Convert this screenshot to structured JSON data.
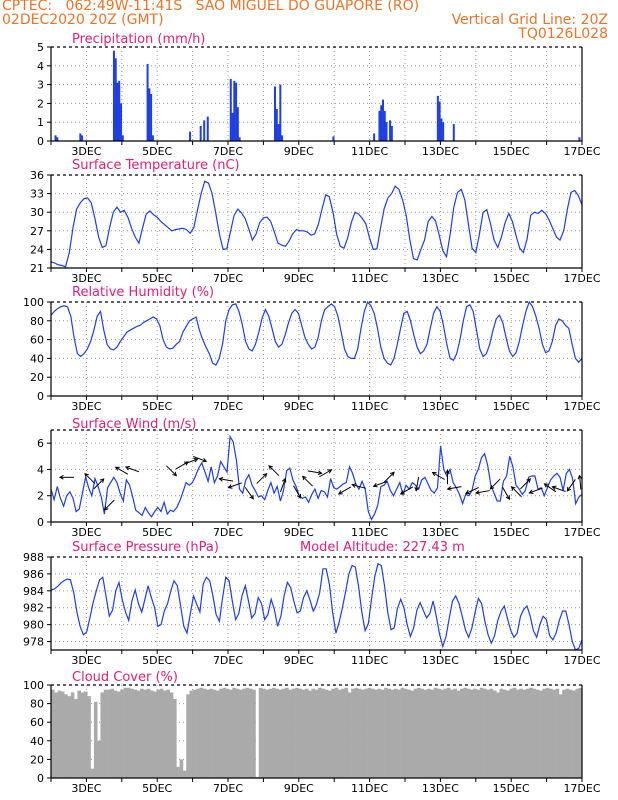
{
  "header": {
    "line1_left": "CPTEC:   062:49W-11:41S   SAO MIGUEL DO GUAPORE (RO)",
    "line2_left": "02DEC2020 20Z (GMT)",
    "line2_right": "Vertical Grid Line: 20Z",
    "line3_right": "TQ0126L028"
  },
  "colors": {
    "header": "#e8752a",
    "title": "#e0207a",
    "series": "#1f3fe0",
    "cloud": "#aaaaaa",
    "arrow": "#000000"
  },
  "chart_data": [
    {
      "type": "bar",
      "title": "Precipitation (mm/h)",
      "ylim": [
        0,
        5
      ],
      "yticks": [
        0,
        1,
        2,
        3,
        4,
        5
      ],
      "xlabels": [
        "3DEC",
        "5DEC",
        "7DEC",
        "9DEC",
        "11DEC",
        "13DEC",
        "15DEC",
        "17DEC"
      ],
      "bars": [
        [
          0.1,
          0.3
        ],
        [
          0.15,
          0.2
        ],
        [
          0.8,
          0.4
        ],
        [
          0.85,
          0.3
        ],
        [
          1.75,
          4.8
        ],
        [
          1.8,
          4.4
        ],
        [
          1.85,
          3.1
        ],
        [
          1.9,
          3.2
        ],
        [
          1.95,
          2.0
        ],
        [
          2.0,
          0.3
        ],
        [
          2.7,
          4.1
        ],
        [
          2.75,
          2.8
        ],
        [
          2.8,
          2.5
        ],
        [
          2.85,
          0.3
        ],
        [
          3.9,
          0.5
        ],
        [
          4.2,
          0.8
        ],
        [
          4.3,
          1.1
        ],
        [
          4.4,
          1.3
        ],
        [
          5.05,
          3.3
        ],
        [
          5.1,
          1.5
        ],
        [
          5.15,
          3.2
        ],
        [
          5.2,
          3.1
        ],
        [
          5.25,
          1.8
        ],
        [
          5.3,
          0.2
        ],
        [
          6.3,
          2.9
        ],
        [
          6.35,
          1.7
        ],
        [
          6.4,
          0.9
        ],
        [
          6.45,
          3.0
        ],
        [
          6.5,
          0.3
        ],
        [
          7.95,
          0.25
        ],
        [
          9.1,
          0.4
        ],
        [
          9.25,
          1.6
        ],
        [
          9.3,
          1.9
        ],
        [
          9.35,
          2.2
        ],
        [
          9.4,
          1.6
        ],
        [
          9.45,
          1.0
        ],
        [
          9.55,
          1.1
        ],
        [
          9.6,
          0.8
        ],
        [
          10.9,
          2.4
        ],
        [
          10.95,
          2.1
        ],
        [
          11.0,
          1.2
        ],
        [
          11.05,
          1.0
        ],
        [
          11.35,
          0.9
        ],
        [
          14.9,
          0.2
        ]
      ]
    },
    {
      "type": "line",
      "title": "Surface Temperature (nC)",
      "ylim": [
        21,
        36
      ],
      "yticks": [
        21,
        24,
        27,
        30,
        33,
        36
      ],
      "xlabels": [
        "3DEC",
        "5DEC",
        "7DEC",
        "9DEC",
        "11DEC",
        "13DEC",
        "15DEC",
        "17DEC"
      ],
      "y": [
        22,
        21.8,
        21.5,
        21.4,
        21.2,
        23.5,
        27.5,
        30.5,
        31.5,
        32.2,
        32.3,
        31.5,
        29,
        26,
        24.3,
        24.6,
        27.5,
        30,
        30.8,
        30,
        30.3,
        29.2,
        27.4,
        26,
        25,
        27.5,
        29.7,
        30.2,
        29.6,
        29.2,
        28.5,
        28,
        27.5,
        27,
        27.2,
        27.3,
        27.4,
        27.2,
        26.6,
        27.5,
        30.3,
        33,
        35,
        34.7,
        33,
        29.8,
        26.4,
        24,
        24.1,
        26.8,
        29.5,
        30.5,
        29.9,
        29,
        27.3,
        25.5,
        26.5,
        28.3,
        29.1,
        29.2,
        28.5,
        26.8,
        25,
        24.7,
        24.5,
        25.3,
        26.5,
        27.2,
        27,
        27,
        26.8,
        26.3,
        26.5,
        28,
        30.5,
        32.8,
        32.5,
        30,
        26.5,
        24.5,
        24.2,
        25.8,
        28.3,
        30,
        29.7,
        29,
        28.1,
        25.8,
        24,
        24.1,
        27.5,
        30.6,
        32.3,
        33,
        34.2,
        33.7,
        32,
        29.5,
        25.5,
        22.5,
        22.3,
        24,
        25.5,
        28.5,
        29.3,
        28.6,
        26.3,
        23.8,
        22.8,
        26.5,
        30.8,
        33.2,
        33.7,
        32,
        28,
        24.2,
        23.5,
        26.5,
        30,
        30.4,
        28.2,
        25.5,
        24.3,
        26,
        28.3,
        29.8,
        28.5,
        26.2,
        24.2,
        23.5,
        25.7,
        29.5,
        30,
        29.8,
        30.3,
        29.8,
        28.8,
        27.4,
        26,
        25.5,
        27,
        30.5,
        33.2,
        33.5,
        32.7,
        31.2
      ]
    },
    {
      "type": "line",
      "title": "Relative Humidity (%)",
      "ylim": [
        0,
        100
      ],
      "yticks": [
        0,
        20,
        40,
        60,
        80,
        100
      ],
      "xlabels": [
        "3DEC",
        "5DEC",
        "7DEC",
        "9DEC",
        "11DEC",
        "13DEC",
        "15DEC",
        "17DEC"
      ],
      "y": [
        86,
        90,
        93,
        95,
        96,
        95,
        85,
        62,
        45,
        42,
        45,
        50,
        58,
        70,
        85,
        90,
        70,
        55,
        50,
        49,
        52,
        58,
        63,
        68,
        70,
        72,
        74,
        75,
        78,
        80,
        82,
        84,
        82,
        75,
        60,
        52,
        50,
        51,
        55,
        58,
        68,
        74,
        80,
        82,
        84,
        70,
        60,
        52,
        45,
        35,
        33,
        40,
        55,
        80,
        92,
        97,
        98,
        90,
        76,
        58,
        50,
        48,
        55,
        68,
        83,
        92,
        85,
        72,
        58,
        52,
        55,
        65,
        78,
        88,
        92,
        88,
        75,
        62,
        55,
        50,
        52,
        62,
        80,
        92,
        95,
        98,
        95,
        85,
        68,
        50,
        42,
        40,
        40,
        50,
        72,
        90,
        100,
        96,
        88,
        72,
        52,
        40,
        35,
        33,
        40,
        55,
        72,
        88,
        90,
        80,
        65,
        52,
        45,
        48,
        55,
        72,
        88,
        95,
        90,
        75,
        55,
        40,
        38,
        45,
        60,
        80,
        95,
        97,
        90,
        70,
        50,
        42,
        45,
        55,
        70,
        82,
        86,
        78,
        62,
        48,
        42,
        46,
        58,
        75,
        90,
        100,
        95,
        85,
        72,
        55,
        46,
        48,
        58,
        75,
        82,
        80,
        75,
        72,
        55,
        40,
        36,
        40
      ]
    },
    {
      "type": "line",
      "title": "Surface Wind (m/s)",
      "ylim": [
        0,
        7
      ],
      "yticks": [
        0,
        2,
        4,
        6
      ],
      "xlabels": [
        "3DEC",
        "5DEC",
        "7DEC",
        "9DEC",
        "11DEC",
        "13DEC",
        "15DEC",
        "17DEC"
      ],
      "y": [
        2.5,
        1.7,
        2.7,
        1.8,
        1.2,
        2.0,
        2.3,
        1.8,
        0.8,
        1.0,
        2.2,
        3.4,
        2.6,
        2.0,
        3.3,
        2.7,
        1.9,
        0.6,
        2.6,
        3.0,
        3.4,
        3.0,
        2.2,
        1.6,
        3.2,
        2.8,
        1.9,
        0.9,
        0.7,
        0.5,
        1.1,
        0.7,
        0.4,
        0.8,
        1.1,
        0.8,
        1.5,
        0.6,
        0.9,
        0.8,
        1.1,
        1.6,
        2.3,
        3.0,
        2.8,
        3.0,
        3.5,
        4.1,
        4.5,
        3.8,
        3.1,
        4.2,
        3.0,
        3.5,
        4.6,
        4.2,
        3.8,
        6.5,
        6.1,
        4.7,
        2.5,
        2.2,
        3.2,
        3.6,
        2.8,
        2.4,
        1.9,
        2.0,
        1.7,
        2.4,
        3.0,
        2.2,
        2.7,
        1.6,
        2.4,
        3.9,
        4.1,
        3.2,
        2.7,
        2.0,
        1.8,
        1.9,
        1.5,
        2.1,
        2.5,
        1.8,
        2.4,
        2.3,
        1.9,
        3.3,
        2.6,
        2.5,
        2.7,
        2.9,
        3.0,
        4.2,
        3.7,
        2.9,
        2.5,
        3.1,
        2.5,
        0.8,
        0.2,
        0.6,
        1.3,
        2.7,
        2.8,
        3.1,
        2.4,
        2.0,
        2.5,
        3.0,
        2.1,
        2.8,
        2.5,
        3.0,
        2.8,
        2.5,
        3.2,
        3.4,
        2.9,
        2.4,
        2.2,
        2.6,
        5.8,
        4.0,
        3.5,
        4.0,
        3.0,
        2.6,
        2.1,
        1.4,
        2.1,
        2.0,
        2.4,
        3.5,
        4.0,
        4.9,
        5.2,
        4.3,
        2.8,
        2.2,
        1.6,
        1.6,
        3.1,
        3.5,
        5.0,
        4.2,
        2.8,
        2.5,
        2.1,
        2.4,
        3.4,
        3.5,
        3.5,
        2.5,
        2.6,
        2.0,
        2.6,
        3.2,
        3.5,
        3.7,
        3.4,
        2.4,
        3.7,
        4.0,
        3.3,
        1.4,
        1.9,
        2.1
      ],
      "arrows": [
        [
          0.45,
          3.4,
          180
        ],
        [
          1.1,
          3.3,
          135
        ],
        [
          1.35,
          2.9,
          45
        ],
        [
          1.65,
          1.3,
          225
        ],
        [
          2.0,
          3.9,
          150
        ],
        [
          2.3,
          4.0,
          160
        ],
        [
          3.4,
          3.9,
          315
        ],
        [
          3.7,
          4.3,
          30
        ],
        [
          3.95,
          4.6,
          20
        ],
        [
          4.2,
          4.8,
          340
        ],
        [
          4.95,
          3.2,
          170
        ],
        [
          5.2,
          2.8,
          200
        ],
        [
          5.6,
          2.2,
          305
        ],
        [
          5.95,
          3.3,
          45
        ],
        [
          6.3,
          3.9,
          135
        ],
        [
          6.55,
          2.8,
          70
        ],
        [
          6.95,
          2.3,
          300
        ],
        [
          7.25,
          3.1,
          135
        ],
        [
          7.45,
          3.8,
          350
        ],
        [
          7.75,
          3.7,
          30
        ],
        [
          8.3,
          2.4,
          210
        ],
        [
          8.7,
          2.7,
          165
        ],
        [
          9.3,
          2.9,
          200
        ],
        [
          9.55,
          3.4,
          45
        ],
        [
          10.05,
          2.4,
          210
        ],
        [
          10.35,
          2.9,
          260
        ],
        [
          10.95,
          3.5,
          150
        ],
        [
          11.2,
          3.4,
          90
        ],
        [
          11.4,
          2.6,
          190
        ],
        [
          11.9,
          2.4,
          205
        ],
        [
          12.2,
          2.3,
          190
        ],
        [
          12.55,
          2.9,
          225
        ],
        [
          12.85,
          2.2,
          300
        ],
        [
          13.15,
          2.3,
          135
        ],
        [
          13.4,
          2.9,
          45
        ],
        [
          13.7,
          2.4,
          200
        ],
        [
          14.1,
          2.6,
          145
        ],
        [
          14.35,
          2.5,
          160
        ],
        [
          14.7,
          2.8,
          235
        ],
        [
          14.95,
          3.0,
          95
        ]
      ]
    },
    {
      "type": "line",
      "title": "Surface Pressure (hPa)",
      "annotation": "Model Altitude: 227.43 m",
      "ylim": [
        977,
        988
      ],
      "yticks": [
        978,
        980,
        982,
        984,
        986,
        988
      ],
      "xlabels": [
        "3DEC",
        "5DEC",
        "7DEC",
        "9DEC",
        "11DEC",
        "13DEC",
        "15DEC",
        "17DEC"
      ],
      "y": [
        984.1,
        984.2,
        984.5,
        984.9,
        985.2,
        985.4,
        985.3,
        983.8,
        981.5,
        979.8,
        978.8,
        979.1,
        980.8,
        982.6,
        984.0,
        985.3,
        985.6,
        983.4,
        981.0,
        981.7,
        984.0,
        985.0,
        983.0,
        981.5,
        980.5,
        982.8,
        984.1,
        982.5,
        981.5,
        983.0,
        984.6,
        983.2,
        982.0,
        979.8,
        980.0,
        981.6,
        982.5,
        984.0,
        985.2,
        984.6,
        982.3,
        979.8,
        979.0,
        981.2,
        983.4,
        982.4,
        981.5,
        984.8,
        985.6,
        985.2,
        983.4,
        981.2,
        980.4,
        983.2,
        985.6,
        985.2,
        982.8,
        980.6,
        981.3,
        983.4,
        984.6,
        982.8,
        980.8,
        981.3,
        983.2,
        982.5,
        980.6,
        981.2,
        983.0,
        981.8,
        979.8,
        981.0,
        983.4,
        985.0,
        984.4,
        982.8,
        981.4,
        981.6,
        983.2,
        984.0,
        982.9,
        981.6,
        982.4,
        983.8,
        986.6,
        986.6,
        984.7,
        981.4,
        979.0,
        980.3,
        982.0,
        983.9,
        986.0,
        987.0,
        986.8,
        984.5,
        981.5,
        979.3,
        980.1,
        983.0,
        985.7,
        987.2,
        987.0,
        984.6,
        981.5,
        979.4,
        979.6,
        981.9,
        983.0,
        982.0,
        980.0,
        978.6,
        979.6,
        981.7,
        982.6,
        981.7,
        980.8,
        981.3,
        982.8,
        981.0,
        978.9,
        977.4,
        978.6,
        980.8,
        982.8,
        983.4,
        982.5,
        981.0,
        979.4,
        978.5,
        979.6,
        981.5,
        983.1,
        982.5,
        980.4,
        978.8,
        977.8,
        978.7,
        980.5,
        981.6,
        982.2,
        980.7,
        979.3,
        978.5,
        979.0,
        981.0,
        981.8,
        982.2,
        981.0,
        979.3,
        978.5,
        980.0,
        981.0,
        980.6,
        978.7,
        978.2,
        979.0,
        980.5,
        981.6,
        981.6,
        980.0,
        978.0,
        977.0,
        977.2,
        978.2
      ]
    },
    {
      "type": "area",
      "title": "Cloud Cover (%)",
      "ylim": [
        0,
        100
      ],
      "yticks": [
        0,
        20,
        40,
        60,
        80,
        100
      ],
      "xlabels": [
        "3DEC",
        "5DEC",
        "7DEC",
        "9DEC",
        "11DEC",
        "13DEC",
        "15DEC",
        "17DEC"
      ],
      "y": [
        95,
        92,
        94,
        93,
        90,
        88,
        92,
        85,
        94,
        92,
        93,
        88,
        10,
        82,
        40,
        92,
        95,
        95,
        96,
        94,
        93,
        95,
        97,
        97,
        96,
        95,
        94,
        96,
        95,
        96,
        94,
        93,
        95,
        96,
        94,
        95,
        92,
        85,
        12,
        20,
        8,
        90,
        94,
        95,
        96,
        97,
        96,
        95,
        96,
        95,
        94,
        96,
        97,
        96,
        95,
        97,
        96,
        95,
        96,
        97,
        96,
        95,
        1,
        97,
        96,
        95,
        96,
        97,
        96,
        95,
        96,
        97,
        95,
        96,
        97,
        96,
        95,
        96,
        94,
        96,
        95,
        97,
        96,
        95,
        94,
        96,
        97,
        95,
        96,
        97,
        92,
        96,
        97,
        96,
        95,
        96,
        97,
        96,
        95,
        96,
        95,
        97,
        96,
        95,
        96,
        95,
        97,
        96,
        95,
        94,
        96,
        97,
        96,
        95,
        96,
        95,
        97,
        96,
        95,
        96,
        97,
        95,
        96,
        94,
        96,
        97,
        96,
        95,
        96,
        95,
        97,
        96,
        95,
        96,
        94,
        92,
        96,
        95,
        94,
        96,
        97,
        95,
        96,
        95,
        96,
        97,
        96,
        95,
        94,
        96,
        97,
        96,
        95,
        96,
        90,
        95,
        96,
        95,
        94,
        96,
        97
      ]
    }
  ]
}
